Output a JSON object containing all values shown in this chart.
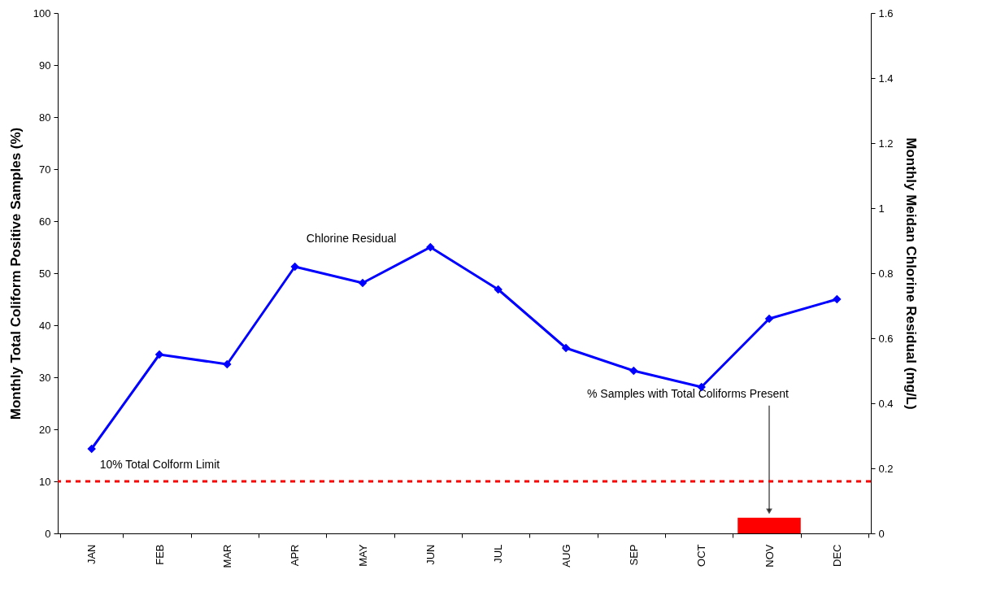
{
  "chart_data": {
    "type": "bar",
    "categories": [
      "JAN",
      "FEB",
      "MAR",
      "APR",
      "MAY",
      "JUN",
      "JUL",
      "AUG",
      "SEP",
      "OCT",
      "NOV",
      "DEC"
    ],
    "series": [
      {
        "name": "% Samples with Total Coliforms Present",
        "color": "#ff0000",
        "values": [
          0,
          0,
          0,
          0,
          0,
          0,
          0,
          0,
          0,
          0,
          3,
          0
        ]
      },
      {
        "name": "Chlorine Residual",
        "type": "line",
        "axis": "y2",
        "color": "#0000ff",
        "values": [
          0.26,
          0.55,
          0.52,
          0.82,
          0.77,
          0.88,
          0.75,
          0.57,
          0.5,
          0.45,
          0.66,
          0.72
        ]
      }
    ],
    "ylabel": "Monthly Total Coliform Positive Samples (%)",
    "y2label": "Monthly Meidan Chlorine Residual (mg/L)",
    "ylim": [
      0,
      100
    ],
    "yticks": [
      0,
      10,
      20,
      30,
      40,
      50,
      60,
      70,
      80,
      90,
      100
    ],
    "y2lim": [
      0,
      1.6
    ],
    "y2ticks": [
      0,
      0.2,
      0.4,
      0.6,
      0.8,
      1,
      1.2,
      1.4,
      1.6
    ],
    "ref_lines": [
      {
        "axis": "y",
        "value": 10,
        "label": "10% Total Colform Limit",
        "color": "#ff0000",
        "line_style": "dashed"
      }
    ],
    "marker": "diamond",
    "grid": false
  }
}
